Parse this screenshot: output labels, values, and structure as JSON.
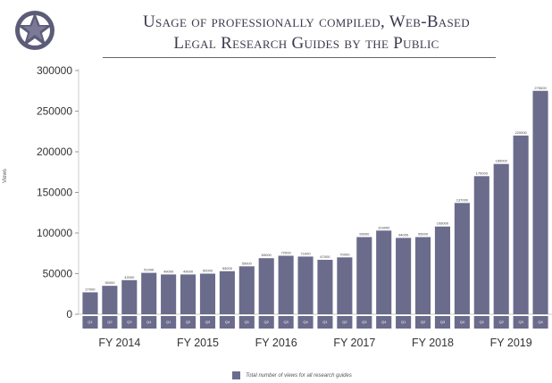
{
  "colors": {
    "bar": "#6b6b8c",
    "title": "#3a3a4e",
    "axis": "#cccccc"
  },
  "header": {
    "logo_icon": "star-seal-icon",
    "title_line1": "Usage of professionally compiled, Web-Based",
    "title_line2": "Legal Research Guides by the Public"
  },
  "chart_data": {
    "type": "bar",
    "title": "Usage of professionally compiled, Web-Based Legal Research Guides by the Public",
    "ylabel": "Views",
    "ylim": [
      0,
      300000
    ],
    "yticks": [
      "300000",
      "250000",
      "200000",
      "150000",
      "100000",
      "50000",
      "0"
    ],
    "grid": false,
    "legend_position": "bottom",
    "fiscal_years": [
      "FY 2014",
      "FY 2015",
      "FY 2016",
      "FY 2017",
      "FY 2018",
      "FY 2019"
    ],
    "categories": [
      "Q1",
      "Q2",
      "Q3",
      "Q4",
      "Q1",
      "Q2",
      "Q3",
      "Q4",
      "Q1",
      "Q2",
      "Q3",
      "Q4",
      "Q1",
      "Q2",
      "Q3",
      "Q4",
      "Q1",
      "Q2",
      "Q3",
      "Q4",
      "Q1",
      "Q2",
      "Q3",
      "Q4"
    ],
    "series": [
      {
        "name": "Total number of views for all research guides",
        "values": [
          27000,
          35000,
          42000,
          51000,
          49000,
          49000,
          50000,
          53000,
          59000,
          69000,
          72000,
          71000,
          67000,
          70000,
          95000,
          103000,
          94000,
          95000,
          108000,
          137000,
          170000,
          185000,
          220000,
          275000
        ]
      }
    ]
  }
}
